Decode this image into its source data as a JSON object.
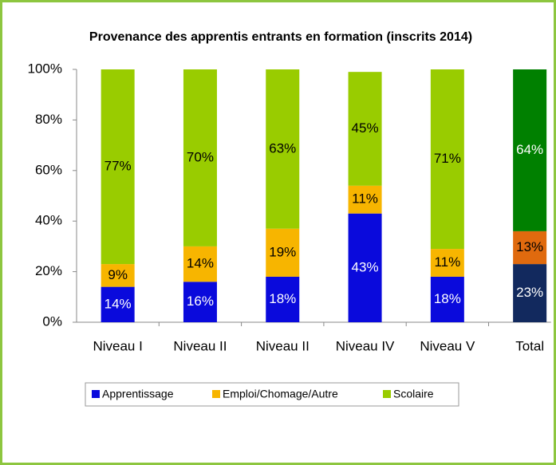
{
  "chart_data": {
    "type": "stacked_bar",
    "title": "Provenance des apprentis entrants en formation (inscrits 2014)",
    "categories": [
      "Niveau I",
      "Niveau II",
      "Niveau II",
      "Niveau IV",
      "Niveau V",
      "Total"
    ],
    "series": [
      {
        "name": "Apprentissage",
        "color": "#0a0adc",
        "colors": [
          "#0a0adc",
          "#0a0adc",
          "#0a0adc",
          "#0a0adc",
          "#0a0adc",
          "#12295e"
        ],
        "values": [
          14,
          16,
          18,
          43,
          18,
          23
        ],
        "value_labels": [
          "14%",
          "16%",
          "18%",
          "43%",
          "18%",
          "23%"
        ]
      },
      {
        "name": "Emploi/Chomage/Autre",
        "color": "#f7b500",
        "colors": [
          "#f7b500",
          "#f7b500",
          "#f7b500",
          "#f7b500",
          "#f7b500",
          "#e06a0e"
        ],
        "values": [
          9,
          14,
          19,
          11,
          11,
          13
        ],
        "value_labels": [
          "9%",
          "14%",
          "19%",
          "11%",
          "11%",
          "13%"
        ]
      },
      {
        "name": "Scolaire",
        "color": "#99cc00",
        "colors": [
          "#99cc00",
          "#99cc00",
          "#99cc00",
          "#99cc00",
          "#99cc00",
          "#008000"
        ],
        "values": [
          77,
          70,
          63,
          45,
          71,
          64
        ],
        "value_labels": [
          "77%",
          "70%",
          "63%",
          "45%",
          "71%",
          "64%"
        ]
      }
    ],
    "ylim": [
      0,
      100
    ],
    "yticks": [
      {
        "value": 0,
        "label": "0%"
      },
      {
        "value": 20,
        "label": "20%"
      },
      {
        "value": 40,
        "label": "40%"
      },
      {
        "value": 60,
        "label": "60%"
      },
      {
        "value": 80,
        "label": "80%"
      },
      {
        "value": 100,
        "label": "100%"
      }
    ],
    "grid": false,
    "legend": "bottom"
  }
}
